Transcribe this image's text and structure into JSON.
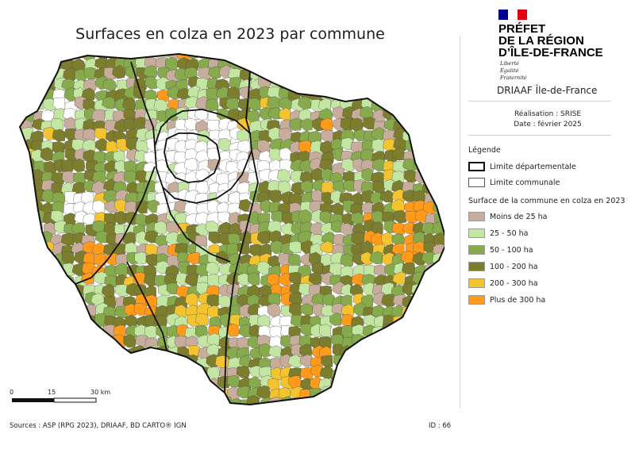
{
  "title": "Surfaces en colza en 2023 par commune",
  "header": {
    "prefet_lines": [
      "PRÉFET",
      "DE LA RÉGION",
      "D’ÎLE-DE-FRANCE"
    ],
    "motto": [
      "Liberté",
      "Égalité",
      "Fraternité"
    ],
    "flag_colors": [
      "#000091",
      "#ffffff",
      "#e1000f"
    ],
    "organisation": "DRIAAF Île-de-France",
    "realisation": "Réalisation : SRISE",
    "date": "Date : février 2025"
  },
  "legend": {
    "title": "Légende",
    "limits": [
      {
        "label": "Limite départementale",
        "style": "thick"
      },
      {
        "label": "Limite communale",
        "style": "thin"
      }
    ],
    "classes_title": "Surface de la commune en colza en 2023",
    "classes": [
      {
        "label": "Moins de 25 ha",
        "color": "#c8ad9c"
      },
      {
        "label": "25 - 50 ha",
        "color": "#c4e6a3"
      },
      {
        "label": "50 - 100 ha",
        "color": "#87aa4c"
      },
      {
        "label": "100 - 200 ha",
        "color": "#7d7d2e"
      },
      {
        "label": "200 - 300 ha",
        "color": "#f4c430"
      },
      {
        "label": "Plus de 300 ha",
        "color": "#ff9a1a"
      }
    ]
  },
  "scale": {
    "labels": [
      "0",
      "15",
      "30 km"
    ]
  },
  "footer": {
    "sources": "Sources : ASP (RPG 2023), DRIAAF, BD CARTO® IGN",
    "id": "ID : 66"
  }
}
